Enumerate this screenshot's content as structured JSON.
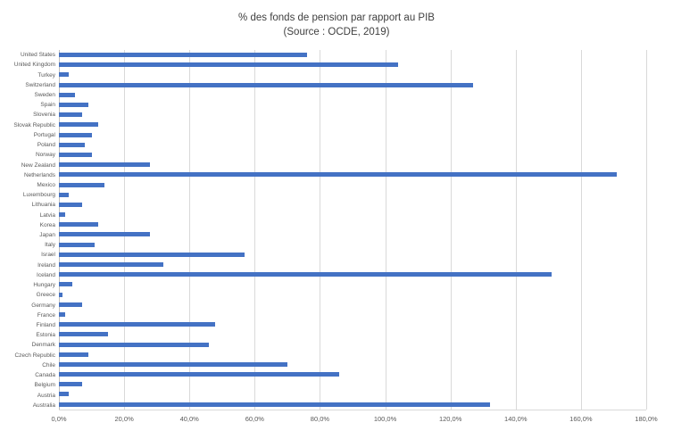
{
  "chart_data": {
    "type": "bar",
    "orientation": "horizontal",
    "title": "% des fonds de pension par rapport au PIB",
    "subtitle": "(Source : OCDE, 2019)",
    "categories": [
      "United States",
      "United Kingdom",
      "Turkey",
      "Switzerland",
      "Sweden",
      "Spain",
      "Slovenia",
      "Slovak Republic",
      "Portugal",
      "Poland",
      "Norway",
      "New Zealand",
      "Netherlands",
      "Mexico",
      "Luxembourg",
      "Lithuania",
      "Latvia",
      "Korea",
      "Japan",
      "Italy",
      "Israel",
      "Ireland",
      "Iceland",
      "Hungary",
      "Greece",
      "Germany",
      "France",
      "Finland",
      "Estonia",
      "Denmark",
      "Czech Republic",
      "Chile",
      "Canada",
      "Belgium",
      "Austria",
      "Australia"
    ],
    "values": [
      76,
      104,
      3,
      127,
      5,
      9,
      7,
      12,
      10,
      8,
      10,
      28,
      171,
      14,
      3,
      7,
      2,
      12,
      28,
      11,
      57,
      32,
      151,
      4,
      1,
      7,
      2,
      48,
      15,
      46,
      9,
      70,
      86,
      7,
      3,
      132
    ],
    "xlim": [
      0,
      180
    ],
    "x_tick_labels": [
      "0,0%",
      "20,0%",
      "40,0%",
      "60,0%",
      "80,0%",
      "100,0%",
      "120,0%",
      "140,0%",
      "160,0%",
      "180,0%"
    ],
    "x_tick_values": [
      0,
      20,
      40,
      60,
      80,
      100,
      120,
      140,
      160,
      180
    ],
    "bar_color": "#4472C4",
    "grid_color": "#D9D9D9",
    "axis_color": "#BFBFBF",
    "grid": true,
    "legend": false
  }
}
